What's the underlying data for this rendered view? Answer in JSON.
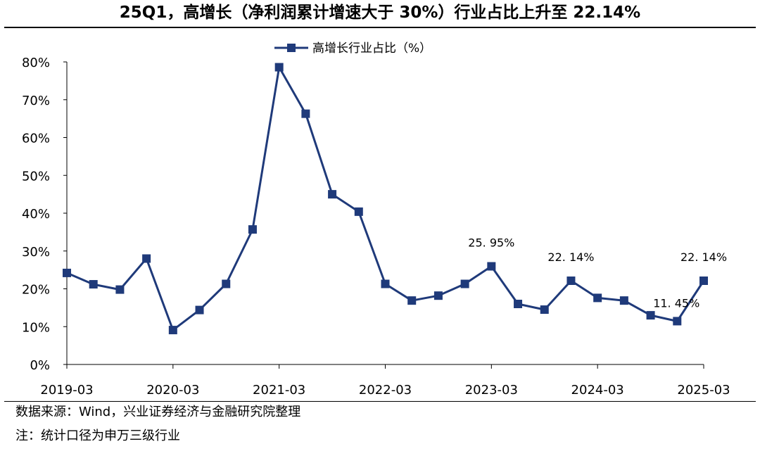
{
  "title": "25Q1，高增长（净利润累计增速大于 30%）行业占比上升至 22.14%",
  "source_note": "数据来源：Wind，兴业证券经济与金融研究院整理",
  "footnote": "注：统计口径为申万三级行业",
  "colors": {
    "series": "#1f3a7a",
    "axis": "#000000"
  },
  "chart_data": {
    "type": "line",
    "series": [
      {
        "name": "高增长行业占比（%）",
        "x": [
          "2019-03",
          "2019-06",
          "2019-09",
          "2019-12",
          "2020-03",
          "2020-06",
          "2020-09",
          "2020-12",
          "2021-03",
          "2021-06",
          "2021-09",
          "2021-12",
          "2022-03",
          "2022-06",
          "2022-09",
          "2022-12",
          "2023-03",
          "2023-06",
          "2023-09",
          "2023-12",
          "2024-03",
          "2024-06",
          "2024-09",
          "2024-12",
          "2025-03"
        ],
        "values": [
          24.2,
          21.2,
          19.8,
          28.0,
          9.1,
          14.4,
          21.3,
          35.7,
          78.6,
          66.3,
          45.0,
          40.4,
          21.3,
          16.9,
          18.2,
          21.3,
          25.95,
          16.0,
          14.5,
          22.14,
          17.6,
          16.9,
          13.0,
          11.45,
          22.14
        ]
      }
    ],
    "x_tick_labels": [
      "2019-03",
      "2020-03",
      "2021-03",
      "2022-03",
      "2023-03",
      "2024-03",
      "2025-03"
    ],
    "y_tick_labels": [
      "0%",
      "10%",
      "20%",
      "30%",
      "40%",
      "50%",
      "60%",
      "70%",
      "80%"
    ],
    "ylim": [
      0,
      80
    ],
    "y_step": 10,
    "annotations": [
      {
        "index": 16,
        "text": "25. 95%"
      },
      {
        "index": 19,
        "text": "22. 14%"
      },
      {
        "index": 23,
        "text": "11. 45%"
      },
      {
        "index": 24,
        "text": "22. 14%"
      }
    ],
    "legend_position": "top-center",
    "grid": false
  }
}
